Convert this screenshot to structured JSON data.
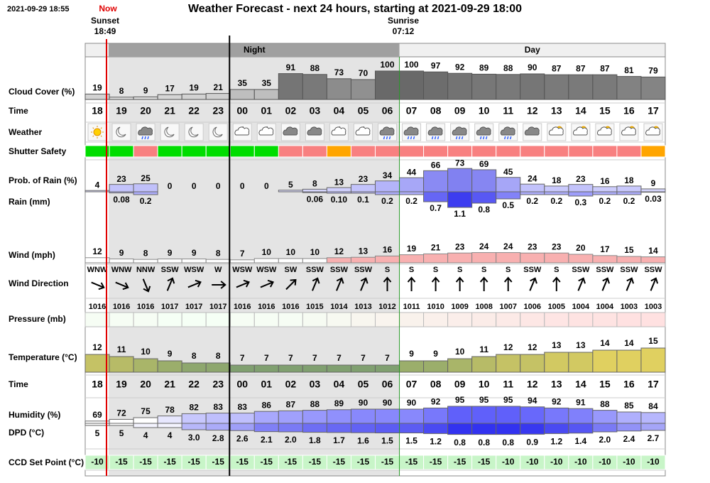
{
  "header": {
    "timestamp": "2021-09-29 18:55",
    "now": "Now",
    "title": "Weather Forecast - next 24 hours, starting at 2021-09-29 18:00",
    "sunset": {
      "label": "Sunset",
      "time": "18:49"
    },
    "sunrise": {
      "label": "Sunrise",
      "time": "07:12"
    },
    "night": "Night",
    "day": "Day"
  },
  "hours": [
    "18",
    "19",
    "20",
    "21",
    "22",
    "23",
    "00",
    "01",
    "02",
    "03",
    "04",
    "05",
    "06",
    "07",
    "08",
    "09",
    "10",
    "11",
    "12",
    "13",
    "14",
    "15",
    "16",
    "17"
  ],
  "time_label": "Time",
  "cloud_cover": {
    "label": "Cloud Cover (%)",
    "values": [
      19,
      8,
      9,
      17,
      19,
      21,
      35,
      35,
      91,
      88,
      73,
      70,
      100,
      100,
      97,
      92,
      89,
      88,
      90,
      87,
      87,
      87,
      81,
      79
    ]
  },
  "weather": {
    "label": "Weather",
    "icons": [
      "sun",
      "moon",
      "cloud-rain",
      "moon",
      "moon",
      "moon",
      "cloud-moon",
      "cloud-moon",
      "cloud",
      "cloud",
      "cloud-moon",
      "cloud-moon",
      "cloud-rain",
      "cloud-rain",
      "cloud-rain",
      "cloud-rain",
      "cloud-rain",
      "cloud-rain",
      "cloud",
      "cloud-sun",
      "cloud-sun",
      "cloud-sun",
      "cloud-sun",
      "cloud-sun"
    ]
  },
  "shutter_safety": {
    "label": "Shutter Safety",
    "colors": [
      "#00dd00",
      "#00dd00",
      "#f88080",
      "#00dd00",
      "#00dd00",
      "#00dd00",
      "#00dd00",
      "#00dd00",
      "#f88080",
      "#f88080",
      "#ffa500",
      "#f88080",
      "#f88080",
      "#f88080",
      "#f88080",
      "#f88080",
      "#f88080",
      "#f88080",
      "#f88080",
      "#f88080",
      "#f88080",
      "#f88080",
      "#f88080",
      "#ffa500"
    ]
  },
  "rain_probability": {
    "label": "Prob. of Rain (%)",
    "values": [
      4,
      23,
      25,
      0,
      0,
      0,
      0,
      0,
      5,
      8,
      13,
      23,
      34,
      44,
      66,
      73,
      69,
      45,
      24,
      18,
      23,
      16,
      18,
      9
    ]
  },
  "rain": {
    "label": "Rain (mm)",
    "values": [
      null,
      0.08,
      0.2,
      null,
      null,
      null,
      null,
      null,
      null,
      0.06,
      0.1,
      0.1,
      0.2,
      0.2,
      0.7,
      1.1,
      0.8,
      0.5,
      0.2,
      0.2,
      0.3,
      0.2,
      0.2,
      0.03
    ],
    "value_labels": [
      null,
      "0.08",
      "0.2",
      null,
      null,
      null,
      null,
      null,
      null,
      "0.06",
      "0.10",
      "0.1",
      "0.2",
      "0.2",
      "0.7",
      "1.1",
      "0.8",
      "0.5",
      "0.2",
      "0.2",
      "0.3",
      "0.2",
      "0.2",
      "0.03"
    ]
  },
  "wind": {
    "label": "Wind (mph)",
    "values": [
      12,
      9,
      8,
      9,
      9,
      8,
      7,
      10,
      10,
      10,
      12,
      13,
      16,
      19,
      21,
      23,
      24,
      24,
      23,
      23,
      20,
      17,
      15,
      14
    ]
  },
  "wind_direction": {
    "label": "Wind Direction",
    "values": [
      "WNW",
      "WNW",
      "NNW",
      "SSW",
      "WSW",
      "W",
      "WSW",
      "WSW",
      "SW",
      "SSW",
      "SSW",
      "SSW",
      "S",
      "S",
      "S",
      "S",
      "S",
      "S",
      "SSW",
      "S",
      "SSW",
      "SSW",
      "SSW",
      "SSW"
    ]
  },
  "pressure": {
    "label": "Pressure (mb)",
    "values": [
      1016,
      1016,
      1016,
      1017,
      1017,
      1017,
      1016,
      1016,
      1016,
      1015,
      1014,
      1013,
      1012,
      1011,
      1010,
      1009,
      1008,
      1007,
      1006,
      1005,
      1004,
      1004,
      1003,
      1003
    ]
  },
  "temperature": {
    "label": "Temperature (°C)",
    "values": [
      12,
      11,
      10,
      9,
      8,
      8,
      7,
      7,
      7,
      7,
      7,
      7,
      7,
      9,
      9,
      10,
      11,
      12,
      12,
      13,
      13,
      14,
      14,
      15
    ]
  },
  "humidity": {
    "label": "Humidity (%)",
    "values": [
      69,
      72,
      75,
      78,
      82,
      83,
      83,
      86,
      87,
      88,
      89,
      90,
      90,
      90,
      92,
      95,
      95,
      95,
      94,
      92,
      91,
      88,
      85,
      84
    ]
  },
  "dpd": {
    "label": "DPD (°C)",
    "values": [
      5,
      5,
      4,
      4,
      3,
      2.8,
      2.6,
      2.1,
      2,
      1.8,
      1.7,
      1.6,
      1.5,
      1.5,
      1.2,
      0.8,
      0.8,
      0.8,
      0.9,
      1.2,
      1.4,
      2,
      2.4,
      2.7
    ],
    "value_labels": [
      "5",
      "5",
      "4",
      "4",
      "3.0",
      "2.8",
      "2.6",
      "2.1",
      "2.0",
      "1.8",
      "1.7",
      "1.6",
      "1.5",
      "1.5",
      "1.2",
      "0.8",
      "0.8",
      "0.8",
      "0.9",
      "1.2",
      "1.4",
      "2.0",
      "2.4",
      "2.7"
    ]
  },
  "ccd_set_point": {
    "label": "CCD Set Point (°C)",
    "values": [
      -10,
      -15,
      -15,
      -15,
      -15,
      -15,
      -15,
      -15,
      -15,
      -15,
      -15,
      -15,
      -15,
      -15,
      -15,
      -15,
      -15,
      -10,
      -10,
      -10,
      -10,
      -10,
      -10,
      -10
    ]
  }
}
